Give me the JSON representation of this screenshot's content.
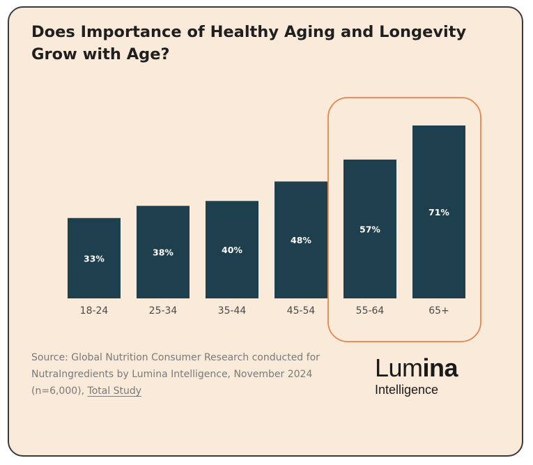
{
  "colors": {
    "background": "#f9ead9",
    "bar": "#1e3f4d",
    "bar_label": "#ffffff",
    "highlight": "#e8844a",
    "axis_text": "#4a4a4a",
    "title": "#1f1f1f",
    "source_text": "#7a7a7a",
    "card_border": "#3a3a3a"
  },
  "chart_data": {
    "type": "bar",
    "title": "Does Importance of Healthy Aging and Longevity Grow with Age?",
    "categories": [
      "18-24",
      "25-34",
      "35-44",
      "45-54",
      "55-64",
      "65+"
    ],
    "values": [
      33,
      38,
      40,
      48,
      57,
      71
    ],
    "value_labels": [
      "33%",
      "38%",
      "40%",
      "48%",
      "57%",
      "71%"
    ],
    "value_unit": "%",
    "xlabel": "",
    "ylabel": "",
    "ylim": [
      0,
      71
    ],
    "grid": false,
    "legend": "none",
    "highlighted_categories": [
      "55-64",
      "65+"
    ]
  },
  "source": {
    "text": "Source: Global Nutrition Consumer Research conducted for NutraIngredients by Lumina Intelligence, November 2024 (n=6,000), ",
    "link_text": "Total Study"
  },
  "logo": {
    "word_part1": "Lum",
    "word_part2": "ina",
    "subtitle": "Intelligence"
  }
}
